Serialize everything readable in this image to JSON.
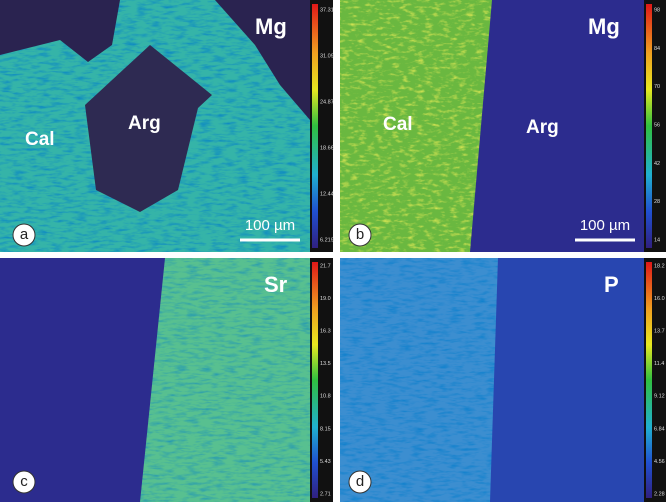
{
  "panels": [
    {
      "letter": "a",
      "element": "Mg",
      "phases": [
        "Cal",
        "Arg"
      ],
      "scale_bar": "100 µm",
      "colorbar": [
        "37.31",
        "31.09",
        "24.87",
        "18.66",
        "12.44",
        "6.219"
      ]
    },
    {
      "letter": "b",
      "element": "Mg",
      "phases": [
        "Cal",
        "Arg"
      ],
      "scale_bar": "100 µm",
      "colorbar": [
        "98",
        "84",
        "70",
        "56",
        "42",
        "28",
        "14"
      ]
    },
    {
      "letter": "c",
      "element": "Sr",
      "phases": [],
      "colorbar": [
        "21.7",
        "19.0",
        "16.3",
        "13.5",
        "10.8",
        "8.15",
        "5.43",
        "2.71"
      ]
    },
    {
      "letter": "d",
      "element": "P",
      "phases": [],
      "colorbar": [
        "18.2",
        "16.0",
        "13.7",
        "11.4",
        "9.12",
        "6.84",
        "4.56",
        "2.28"
      ]
    }
  ]
}
